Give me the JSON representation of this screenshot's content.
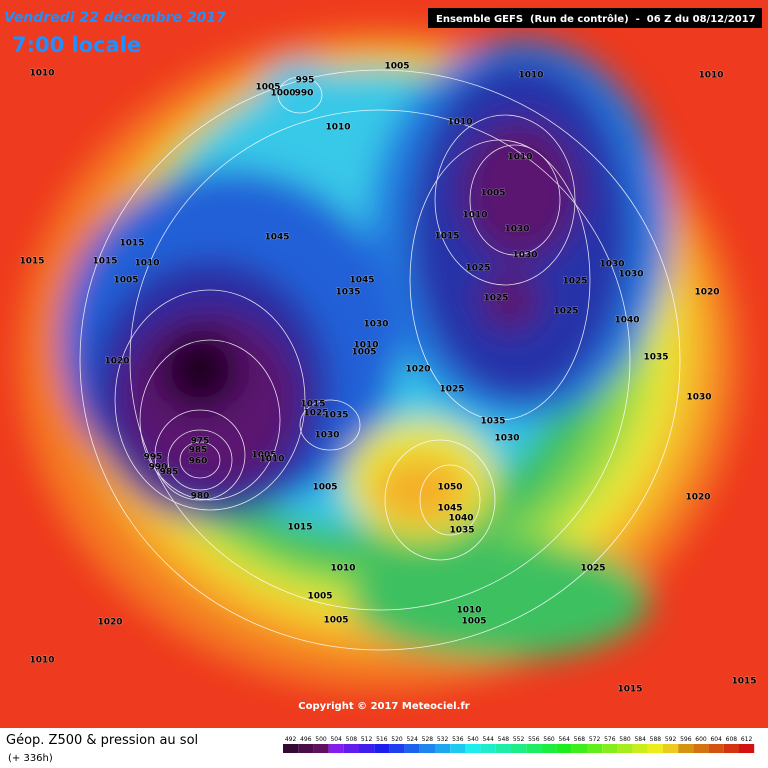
{
  "header": {
    "date": "Vendredi 22 décembre 2017",
    "time": "7:00 locale",
    "model": "Ensemble GEFS  (Run de contrôle)  -  06 Z du 08/12/2017"
  },
  "isobar_labels": [
    1010,
    1005,
    995,
    1000,
    990,
    1005,
    1010,
    1010,
    1010,
    1010,
    1010,
    1005,
    1010,
    1015,
    1030,
    1045,
    1015,
    1015,
    1015,
    1010,
    1005,
    1025,
    1030,
    1030,
    1030,
    1025,
    1045,
    1035,
    1020,
    1025,
    1025,
    1040,
    1030,
    1010,
    1005,
    1020,
    1035,
    1020,
    1025,
    1030,
    1015,
    1025,
    1035,
    1030,
    1035,
    1030,
    975,
    995,
    985,
    990,
    960,
    985,
    1005,
    1010,
    1005,
    1050,
    980,
    1020,
    1045,
    1040,
    1035,
    1015,
    1010,
    1025,
    1005,
    1005,
    1010,
    1005,
    1020,
    1010,
    1015,
    1015
  ],
  "footer": {
    "title": "Géop. Z500 & pression au sol",
    "lead": "(+ 336h)",
    "copyright": "Copyright © 2017 Meteociel.fr"
  },
  "scale": [
    492,
    496,
    500,
    504,
    508,
    512,
    516,
    520,
    524,
    528,
    532,
    536,
    540,
    544,
    548,
    552,
    556,
    560,
    564,
    568,
    572,
    576,
    580,
    584,
    588,
    592,
    596,
    600,
    604,
    608,
    612
  ]
}
